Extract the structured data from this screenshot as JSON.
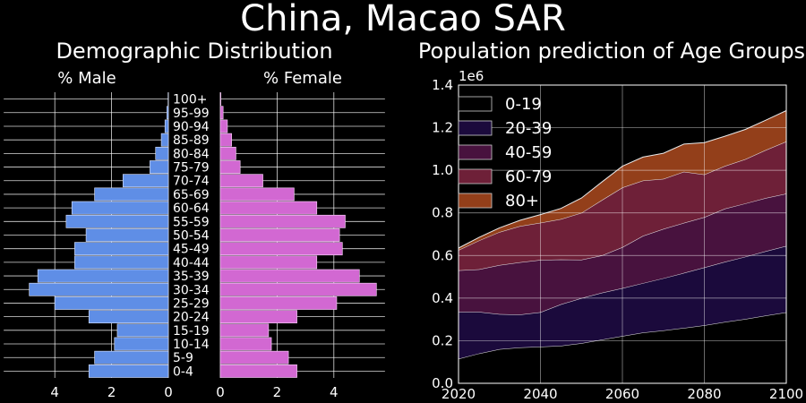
{
  "title": "China, Macao SAR",
  "chart_data": [
    {
      "type": "bar",
      "orientation": "horizontal-butterfly",
      "title": "Demographic Distribution",
      "left_label": "% Male",
      "right_label": "% Female",
      "categories": [
        "0-4",
        "5-9",
        "10-14",
        "15-19",
        "20-24",
        "25-29",
        "30-34",
        "35-39",
        "40-44",
        "45-49",
        "50-54",
        "55-59",
        "60-64",
        "65-69",
        "70-74",
        "75-79",
        "80-84",
        "85-89",
        "90-94",
        "95-99",
        "100+"
      ],
      "series": [
        {
          "name": "% Male",
          "color": "#5f8ee6",
          "values": [
            2.8,
            2.6,
            1.9,
            1.8,
            2.8,
            4.0,
            4.9,
            4.6,
            3.3,
            3.3,
            2.9,
            3.6,
            3.4,
            2.6,
            1.6,
            0.65,
            0.45,
            0.25,
            0.12,
            0.05,
            0.01
          ]
        },
        {
          "name": "% Female",
          "color": "#d268d2",
          "values": [
            2.7,
            2.4,
            1.8,
            1.7,
            2.7,
            4.1,
            5.5,
            4.9,
            3.4,
            4.3,
            4.2,
            4.4,
            3.4,
            2.6,
            1.5,
            0.7,
            0.55,
            0.4,
            0.25,
            0.1,
            0.02
          ]
        }
      ],
      "xlim": [
        0,
        5.8
      ],
      "xticks": [
        4,
        2,
        0,
        2,
        4
      ],
      "grid": true
    },
    {
      "type": "area",
      "stacked": true,
      "title": "Population prediction of Age Groups",
      "ylabel_offset": "1e6",
      "x": [
        2020,
        2025,
        2030,
        2035,
        2040,
        2045,
        2050,
        2055,
        2060,
        2065,
        2070,
        2075,
        2080,
        2085,
        2090,
        2095,
        2100
      ],
      "series": [
        {
          "name": "0-19",
          "color": "#000000",
          "values": [
            0.115,
            0.14,
            0.16,
            0.168,
            0.172,
            0.176,
            0.188,
            0.205,
            0.222,
            0.238,
            0.248,
            0.26,
            0.272,
            0.288,
            0.302,
            0.318,
            0.333
          ]
        },
        {
          "name": "20-39",
          "color": "#1b0a3c",
          "values": [
            0.22,
            0.195,
            0.165,
            0.155,
            0.162,
            0.195,
            0.212,
            0.22,
            0.225,
            0.232,
            0.245,
            0.258,
            0.272,
            0.282,
            0.292,
            0.302,
            0.312
          ]
        },
        {
          "name": "40-59",
          "color": "#48123e",
          "values": [
            0.195,
            0.2,
            0.23,
            0.245,
            0.245,
            0.21,
            0.18,
            0.175,
            0.192,
            0.222,
            0.232,
            0.235,
            0.236,
            0.25,
            0.25,
            0.25,
            0.245
          ]
        },
        {
          "name": "60-79",
          "color": "#6e2038",
          "values": [
            0.095,
            0.135,
            0.155,
            0.17,
            0.175,
            0.19,
            0.22,
            0.26,
            0.28,
            0.26,
            0.235,
            0.24,
            0.2,
            0.2,
            0.208,
            0.225,
            0.245
          ]
        },
        {
          "name": "80+",
          "color": "#933f1a",
          "values": [
            0.01,
            0.015,
            0.02,
            0.027,
            0.038,
            0.05,
            0.07,
            0.085,
            0.1,
            0.11,
            0.12,
            0.13,
            0.15,
            0.14,
            0.14,
            0.14,
            0.145
          ]
        }
      ],
      "xlim": [
        2020,
        2100
      ],
      "ylim": [
        0,
        1.4
      ],
      "xticks": [
        2020,
        2040,
        2060,
        2080,
        2100
      ],
      "yticks": [
        0.0,
        0.2,
        0.4,
        0.6,
        0.8,
        1.0,
        1.2,
        1.4
      ],
      "legend_position": "top-left",
      "grid": true
    }
  ]
}
